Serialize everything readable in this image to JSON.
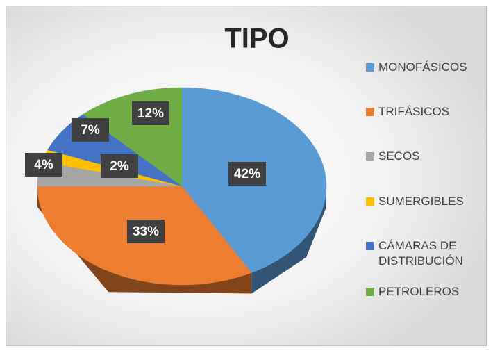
{
  "chart_data": {
    "type": "pie",
    "title": "TIPO",
    "categories": [
      "MONOFÁSICOS",
      "TRIFÁSICOS",
      "SECOS",
      "SUMERGIBLES",
      "CÁMARAS DE DISTRIBUCIÓN",
      "PETROLEROS"
    ],
    "values": [
      42,
      33,
      4,
      2,
      7,
      12
    ],
    "value_labels": [
      "42%",
      "33%",
      "4%",
      "2%",
      "7%",
      "12%"
    ],
    "colors": [
      "#5b9bd5",
      "#ed7d31",
      "#a5a5a5",
      "#ffc000",
      "#4472c4",
      "#70ad47"
    ],
    "legend": "right"
  }
}
